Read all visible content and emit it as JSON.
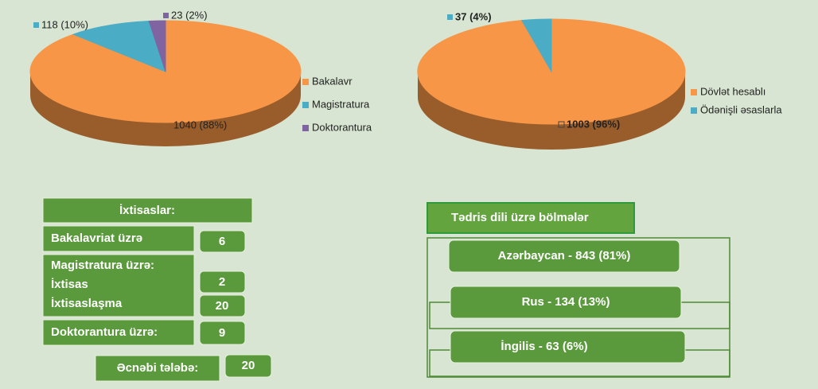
{
  "chart_data": [
    {
      "type": "pie",
      "categories": [
        "Bakalavr",
        "Magistratura",
        "Doktorantura"
      ],
      "values": [
        1040,
        118,
        23
      ],
      "value_labels": [
        "1040 (88%)",
        "118 (10%)",
        "23 (2%)"
      ],
      "colors": [
        "#f79646",
        "#4bacc6",
        "#8064a2"
      ]
    },
    {
      "type": "pie",
      "categories": [
        "Dövlət hesablı",
        "Ödənişli əsaslarla"
      ],
      "values": [
        1003,
        37
      ],
      "value_labels": [
        "1003 (96%)",
        "37 (4%)"
      ],
      "colors": [
        "#f79646",
        "#4bacc6"
      ]
    }
  ],
  "specialties": {
    "title": "İxtisaslar:",
    "bachelor": {
      "label": "Bakalavriat üzrə",
      "value": "6"
    },
    "master": {
      "label": "Magistratura üzrə:",
      "specialty": {
        "label": "İxtisas",
        "value": "2"
      },
      "specialization": {
        "label": "İxtisaslaşma",
        "value": "20"
      }
    },
    "doctorate": {
      "label": "Doktorantura  üzrə:",
      "value": "9"
    },
    "foreign": {
      "label": "Əcnəbi tələbə:",
      "value": "20"
    }
  },
  "languages": {
    "title": "Tədris   dili üzrə bölmələr",
    "items": [
      "Azərbaycan  -  843 (81%)",
      "Rus  -  134  (13%)",
      "İngilis  -  63  (6%)"
    ]
  }
}
